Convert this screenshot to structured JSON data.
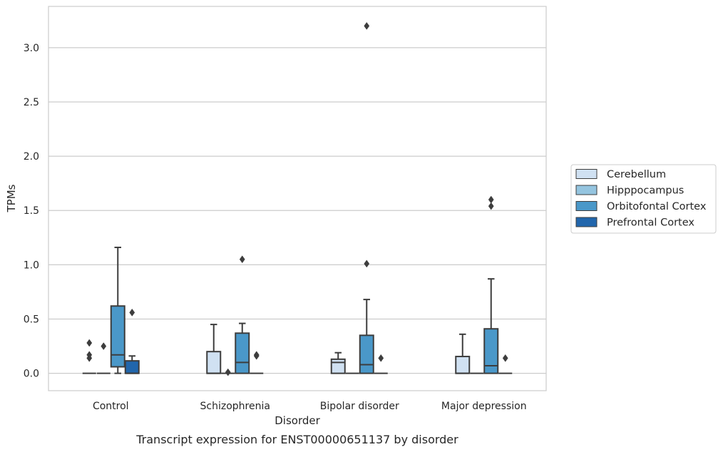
{
  "chart_data": {
    "type": "box",
    "xlabel": "Disorder",
    "ylabel": "TPMs",
    "caption": "Transcript expression for ENST00000651137 by disorder",
    "categories": [
      "Control",
      "Schizophrenia",
      "Bipolar disorder",
      "Major depression"
    ],
    "ylim": [
      -0.16,
      3.38
    ],
    "yticks": [
      0.0,
      0.5,
      1.0,
      1.5,
      2.0,
      2.5,
      3.0
    ],
    "ytick_labels": [
      "0.0",
      "0.5",
      "1.0",
      "1.5",
      "2.0",
      "2.5",
      "3.0"
    ],
    "grid": "horizontal",
    "legend_position": "right",
    "series": [
      {
        "name": "Cerebellum",
        "color": "#d0e1f2",
        "boxes": [
          {
            "category": "Control",
            "q1": 0.0,
            "median": 0.0,
            "q3": 0.0,
            "whisker_low": 0.0,
            "whisker_high": 0.0,
            "outliers": [
              0.28,
              0.17,
              0.14
            ]
          },
          {
            "category": "Schizophrenia",
            "q1": 0.0,
            "median": 0.0,
            "q3": 0.2,
            "whisker_low": 0.0,
            "whisker_high": 0.45,
            "outliers": []
          },
          {
            "category": "Bipolar disorder",
            "q1": 0.0,
            "median": 0.1,
            "q3": 0.13,
            "whisker_low": 0.0,
            "whisker_high": 0.19,
            "outliers": []
          },
          {
            "category": "Major depression",
            "q1": 0.0,
            "median": 0.0,
            "q3": 0.155,
            "whisker_low": 0.0,
            "whisker_high": 0.36,
            "outliers": []
          }
        ]
      },
      {
        "name": "Hipppocampus",
        "color": "#94c4df",
        "boxes": [
          {
            "category": "Control",
            "q1": 0.0,
            "median": 0.0,
            "q3": 0.0,
            "whisker_low": 0.0,
            "whisker_high": 0.0,
            "outliers": [
              0.25
            ]
          },
          {
            "category": "Schizophrenia",
            "q1": 0.0,
            "median": 0.0,
            "q3": 0.0,
            "whisker_low": 0.0,
            "whisker_high": 0.0,
            "outliers": [
              0.01
            ]
          },
          {
            "category": "Bipolar disorder",
            "q1": 0.0,
            "median": 0.0,
            "q3": 0.0,
            "whisker_low": 0.0,
            "whisker_high": 0.0,
            "outliers": []
          },
          {
            "category": "Major depression",
            "q1": 0.0,
            "median": 0.0,
            "q3": 0.0,
            "whisker_low": 0.0,
            "whisker_high": 0.0,
            "outliers": []
          }
        ]
      },
      {
        "name": "Orbitofontal Cortex",
        "color": "#4a98c9",
        "boxes": [
          {
            "category": "Control",
            "q1": 0.06,
            "median": 0.17,
            "q3": 0.62,
            "whisker_low": 0.0,
            "whisker_high": 1.16,
            "outliers": []
          },
          {
            "category": "Schizophrenia",
            "q1": 0.0,
            "median": 0.1,
            "q3": 0.37,
            "whisker_low": 0.0,
            "whisker_high": 0.46,
            "outliers": [
              1.05
            ]
          },
          {
            "category": "Bipolar disorder",
            "q1": 0.0,
            "median": 0.08,
            "q3": 0.35,
            "whisker_low": 0.0,
            "whisker_high": 0.68,
            "outliers": [
              3.2,
              1.01
            ]
          },
          {
            "category": "Major depression",
            "q1": 0.0,
            "median": 0.07,
            "q3": 0.41,
            "whisker_low": 0.0,
            "whisker_high": 0.87,
            "outliers": [
              1.6,
              1.54
            ]
          }
        ]
      },
      {
        "name": "Prefrontal Cortex",
        "color": "#2166ac",
        "boxes": [
          {
            "category": "Control",
            "q1": 0.0,
            "median": 0.0,
            "q3": 0.115,
            "whisker_low": 0.0,
            "whisker_high": 0.16,
            "outliers": [
              0.56
            ]
          },
          {
            "category": "Schizophrenia",
            "q1": 0.0,
            "median": 0.0,
            "q3": 0.0,
            "whisker_low": 0.0,
            "whisker_high": 0.0,
            "outliers": [
              0.17,
              0.16
            ]
          },
          {
            "category": "Bipolar disorder",
            "q1": 0.0,
            "median": 0.0,
            "q3": 0.0,
            "whisker_low": 0.0,
            "whisker_high": 0.0,
            "outliers": [
              0.14
            ]
          },
          {
            "category": "Major depression",
            "q1": 0.0,
            "median": 0.0,
            "q3": 0.0,
            "whisker_low": 0.0,
            "whisker_high": 0.0,
            "outliers": [
              0.14
            ]
          }
        ]
      }
    ]
  }
}
